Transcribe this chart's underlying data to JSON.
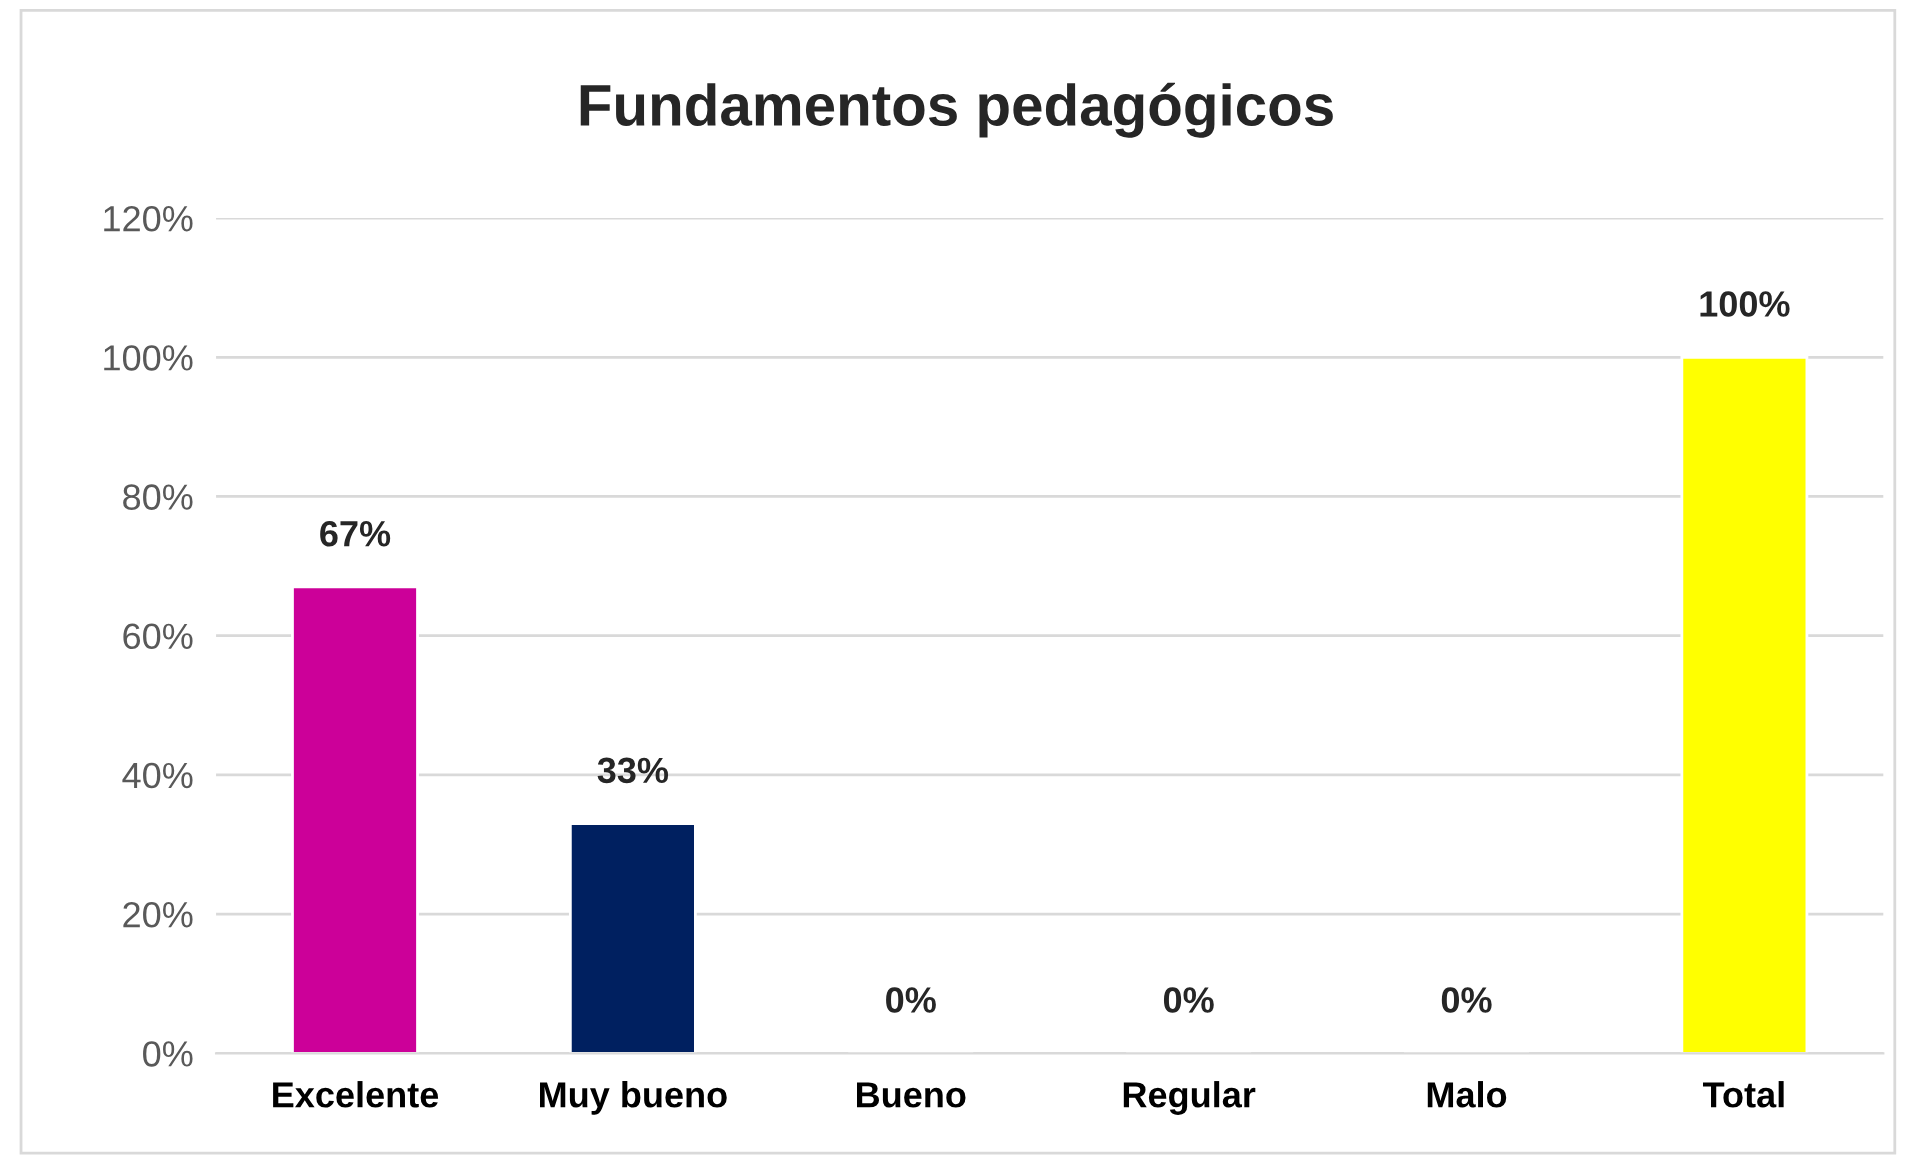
{
  "chart_data": {
    "type": "bar",
    "title": "Fundamentos pedagógicos",
    "categories": [
      "Excelente",
      "Muy bueno",
      "Bueno",
      "Regular",
      "Malo",
      "Total"
    ],
    "values": [
      67,
      33,
      0,
      0,
      0,
      100
    ],
    "value_labels": [
      "67%",
      "33%",
      "0%",
      "0%",
      "0%",
      "100%"
    ],
    "colors": [
      "#cc0099",
      "#002060",
      null,
      null,
      null,
      "#ffff00"
    ],
    "ylim": [
      0,
      120
    ],
    "yticks": [
      {
        "value": 0,
        "label": "0%"
      },
      {
        "value": 20,
        "label": "20%"
      },
      {
        "value": 40,
        "label": "40%"
      },
      {
        "value": 60,
        "label": "60%"
      },
      {
        "value": 80,
        "label": "80%"
      },
      {
        "value": 100,
        "label": "100%"
      },
      {
        "value": 120,
        "label": "120%"
      }
    ],
    "grid": "y",
    "legend": false
  }
}
